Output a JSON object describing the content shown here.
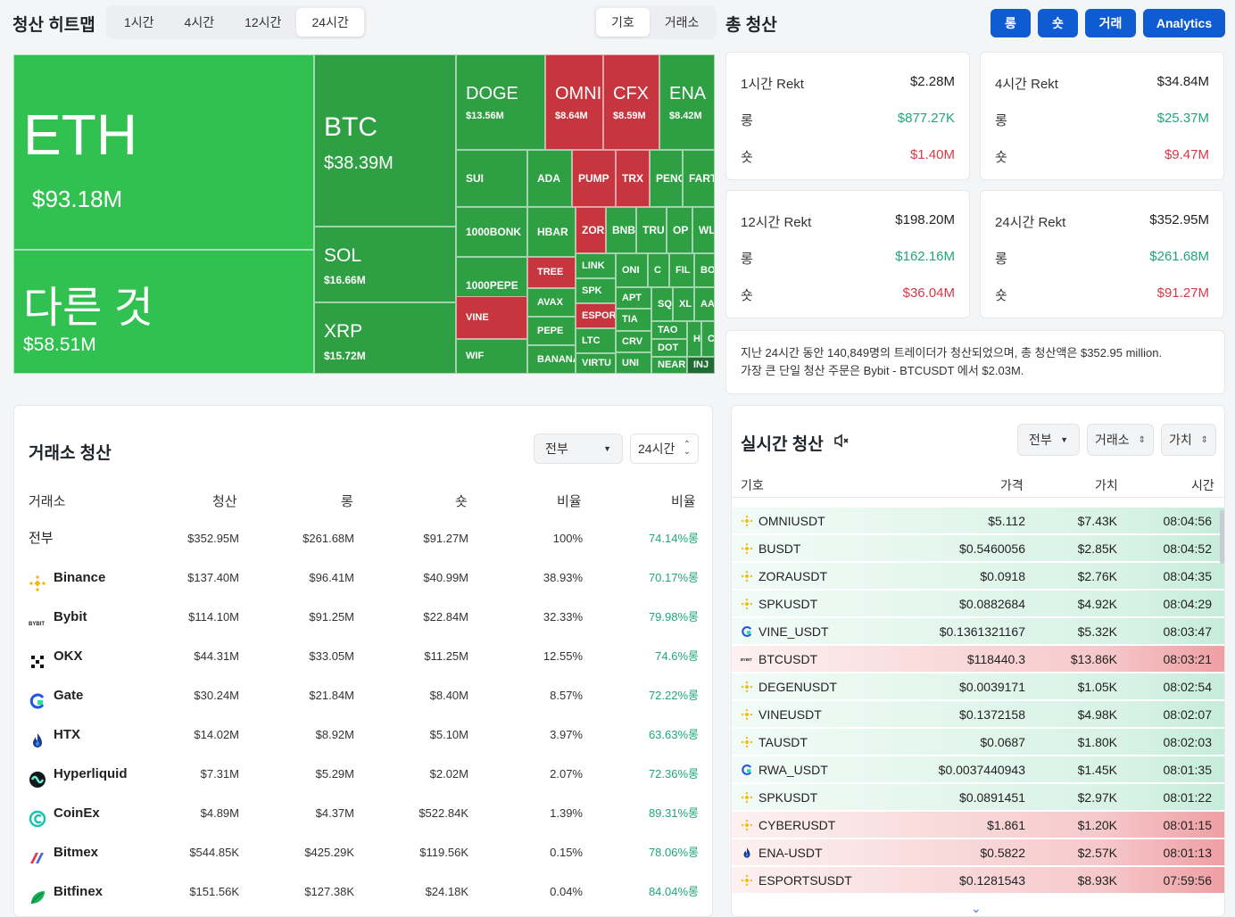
{
  "heatmap": {
    "title": "청산 히트맵",
    "timeframes": [
      "1시간",
      "4시간",
      "12시간",
      "24시간"
    ],
    "active_timeframe": "24시간",
    "group_tabs": [
      "기호",
      "거래소"
    ],
    "tiles": [
      {
        "id": "eth",
        "symbol": "ETH",
        "value": "$93.18M",
        "color": "g2"
      },
      {
        "id": "other",
        "symbol": "다른 것",
        "value": "$58.51M",
        "color": "g2"
      },
      {
        "id": "btc",
        "symbol": "BTC",
        "value": "$38.39M",
        "color": "g"
      },
      {
        "id": "sol",
        "symbol": "SOL",
        "value": "$16.66M",
        "color": "g"
      },
      {
        "id": "xrp",
        "symbol": "XRP",
        "value": "$15.72M",
        "color": "g"
      },
      {
        "id": "doge",
        "symbol": "DOGE",
        "value": "$13.56M",
        "color": "g"
      },
      {
        "id": "omni",
        "symbol": "OMNI",
        "value": "$8.64M",
        "color": "r"
      },
      {
        "id": "cfx",
        "symbol": "CFX",
        "value": "$8.59M",
        "color": "r"
      },
      {
        "id": "ena",
        "symbol": "ENA",
        "value": "$8.42M",
        "color": "g"
      },
      {
        "id": "sui",
        "symbol": "SUI",
        "color": "g"
      },
      {
        "id": "ada",
        "symbol": "ADA",
        "color": "g"
      },
      {
        "id": "pump",
        "symbol": "PUMP",
        "color": "r"
      },
      {
        "id": "trx",
        "symbol": "TRX",
        "color": "r"
      },
      {
        "id": "peng",
        "symbol": "PENG",
        "color": "g"
      },
      {
        "id": "fart",
        "symbol": "FART",
        "color": "g"
      },
      {
        "id": "bonk",
        "symbol": "1000BONK",
        "color": "g"
      },
      {
        "id": "hbar",
        "symbol": "HBAR",
        "color": "g"
      },
      {
        "id": "zora",
        "symbol": "ZORA",
        "color": "r"
      },
      {
        "id": "bnb",
        "symbol": "BNB",
        "color": "g"
      },
      {
        "id": "tru",
        "symbol": "TRU",
        "color": "g"
      },
      {
        "id": "op",
        "symbol": "OP",
        "color": "g"
      },
      {
        "id": "wl",
        "symbol": "WL",
        "color": "g"
      },
      {
        "id": "pepe1000",
        "symbol": "1000PEPE",
        "color": "g"
      },
      {
        "id": "tree",
        "symbol": "TREE",
        "color": "r"
      },
      {
        "id": "link",
        "symbol": "LINK",
        "color": "g"
      },
      {
        "id": "ond",
        "symbol": "ONI",
        "color": "g"
      },
      {
        "id": "c",
        "symbol": "C",
        "color": "g"
      },
      {
        "id": "fil",
        "symbol": "FIL",
        "color": "g"
      },
      {
        "id": "bo",
        "symbol": "BO",
        "color": "g"
      },
      {
        "id": "avax",
        "symbol": "AVAX",
        "color": "g"
      },
      {
        "id": "spk",
        "symbol": "SPK",
        "color": "g"
      },
      {
        "id": "apt",
        "symbol": "APT",
        "color": "g"
      },
      {
        "id": "sq",
        "symbol": "SQ",
        "color": "g"
      },
      {
        "id": "xl",
        "symbol": "XL",
        "color": "g"
      },
      {
        "id": "aa",
        "symbol": "AA",
        "color": "g"
      },
      {
        "id": "vine",
        "symbol": "VINE",
        "color": "r"
      },
      {
        "id": "espor",
        "symbol": "ESPOR",
        "color": "r"
      },
      {
        "id": "tia",
        "symbol": "TIA",
        "color": "g"
      },
      {
        "id": "pepe",
        "symbol": "PEPE",
        "color": "g"
      },
      {
        "id": "ltc",
        "symbol": "LTC",
        "color": "g"
      },
      {
        "id": "crv",
        "symbol": "CRV",
        "color": "g"
      },
      {
        "id": "tao",
        "symbol": "TAO",
        "color": "g"
      },
      {
        "id": "h",
        "symbol": "H",
        "color": "g"
      },
      {
        "id": "cc",
        "symbol": "C",
        "color": "g"
      },
      {
        "id": "dot",
        "symbol": "DOT",
        "color": "g"
      },
      {
        "id": "wif",
        "symbol": "WIF",
        "color": "g"
      },
      {
        "id": "banana",
        "symbol": "BANANA",
        "color": "g"
      },
      {
        "id": "virtual",
        "symbol": "VIRTU",
        "color": "g"
      },
      {
        "id": "uni",
        "symbol": "UNI",
        "color": "g"
      },
      {
        "id": "near",
        "symbol": "NEAR",
        "color": "g"
      },
      {
        "id": "inj",
        "symbol": "INJ",
        "color": "dg"
      }
    ]
  },
  "total": {
    "title": "총 청산",
    "buttons": [
      "롱",
      "숏",
      "거래",
      "Analytics"
    ],
    "cards": [
      {
        "title": "1시간 Rekt",
        "total": "$2.28M",
        "long_label": "롱",
        "long": "$877.27K",
        "short_label": "숏",
        "short": "$1.40M"
      },
      {
        "title": "4시간 Rekt",
        "total": "$34.84M",
        "long_label": "롱",
        "long": "$25.37M",
        "short_label": "숏",
        "short": "$9.47M"
      },
      {
        "title": "12시간 Rekt",
        "total": "$198.20M",
        "long_label": "롱",
        "long": "$162.16M",
        "short_label": "숏",
        "short": "$36.04M"
      },
      {
        "title": "24시간 Rekt",
        "total": "$352.95M",
        "long_label": "롱",
        "long": "$261.68M",
        "short_label": "숏",
        "short": "$91.27M"
      }
    ],
    "summary_line1": "지난 24시간 동안 140,849명의 트레이더가 청산되었으며, 총 청산액은 $352.95 million.",
    "summary_line2": "가장 큰 단일 청산 주문은 Bybit - BTCUSDT 에서 $2.03M."
  },
  "exchange": {
    "title": "거래소 청산",
    "filter_value": "전부",
    "period_value": "24시간",
    "headers": [
      "거래소",
      "청산",
      "롱",
      "숏",
      "비율",
      "비율"
    ],
    "rows": [
      {
        "name": "전부",
        "total": "$352.95M",
        "long": "$261.68M",
        "short": "$91.27M",
        "ratio": "100%",
        "long_ratio": "74.14%롱",
        "icon": "none"
      },
      {
        "name": "Binance",
        "total": "$137.40M",
        "long": "$96.41M",
        "short": "$40.99M",
        "ratio": "38.93%",
        "long_ratio": "70.17%롱",
        "icon": "binance-icon"
      },
      {
        "name": "Bybit",
        "total": "$114.10M",
        "long": "$91.25M",
        "short": "$22.84M",
        "ratio": "32.33%",
        "long_ratio": "79.98%롱",
        "icon": "bybit-icon"
      },
      {
        "name": "OKX",
        "total": "$44.31M",
        "long": "$33.05M",
        "short": "$11.25M",
        "ratio": "12.55%",
        "long_ratio": "74.6%롱",
        "icon": "okx-icon"
      },
      {
        "name": "Gate",
        "total": "$30.24M",
        "long": "$21.84M",
        "short": "$8.40M",
        "ratio": "8.57%",
        "long_ratio": "72.22%롱",
        "icon": "gate-icon"
      },
      {
        "name": "HTX",
        "total": "$14.02M",
        "long": "$8.92M",
        "short": "$5.10M",
        "ratio": "3.97%",
        "long_ratio": "63.63%롱",
        "icon": "htx-icon"
      },
      {
        "name": "Hyperliquid",
        "total": "$7.31M",
        "long": "$5.29M",
        "short": "$2.02M",
        "ratio": "2.07%",
        "long_ratio": "72.36%롱",
        "icon": "hyperliquid-icon"
      },
      {
        "name": "CoinEx",
        "total": "$4.89M",
        "long": "$4.37M",
        "short": "$522.84K",
        "ratio": "1.39%",
        "long_ratio": "89.31%롱",
        "icon": "coinex-icon"
      },
      {
        "name": "Bitmex",
        "total": "$544.85K",
        "long": "$425.29K",
        "short": "$119.56K",
        "ratio": "0.15%",
        "long_ratio": "78.06%롱",
        "icon": "bitmex-icon"
      },
      {
        "name": "Bitfinex",
        "total": "$151.56K",
        "long": "$127.38K",
        "short": "$24.18K",
        "ratio": "0.04%",
        "long_ratio": "84.04%롱",
        "icon": "bitfinex-icon"
      }
    ]
  },
  "realtime": {
    "title": "실시간 청산",
    "filter_value": "전부",
    "sort_exchange": "거래소",
    "sort_value": "가치",
    "headers": [
      "기호",
      "가격",
      "가치",
      "시간"
    ],
    "rows": [
      {
        "symbol": "OMNIUSDT",
        "price": "$5.112",
        "value": "$7.43K",
        "time": "08:04:56",
        "side": "long",
        "icon": "binance-icon"
      },
      {
        "symbol": "BUSDT",
        "price": "$0.5460056",
        "value": "$2.85K",
        "time": "08:04:52",
        "side": "long",
        "icon": "binance-icon"
      },
      {
        "symbol": "ZORAUSDT",
        "price": "$0.0918",
        "value": "$2.76K",
        "time": "08:04:35",
        "side": "long",
        "icon": "binance-icon"
      },
      {
        "symbol": "SPKUSDT",
        "price": "$0.0882684",
        "value": "$4.92K",
        "time": "08:04:29",
        "side": "long",
        "icon": "binance-icon"
      },
      {
        "symbol": "VINE_USDT",
        "price": "$0.1361321167",
        "value": "$5.32K",
        "time": "08:03:47",
        "side": "long",
        "icon": "gate-icon"
      },
      {
        "symbol": "BTCUSDT",
        "price": "$118440.3",
        "value": "$13.86K",
        "time": "08:03:21",
        "side": "short",
        "icon": "bybit-icon"
      },
      {
        "symbol": "DEGENUSDT",
        "price": "$0.0039171",
        "value": "$1.05K",
        "time": "08:02:54",
        "side": "long",
        "icon": "binance-icon"
      },
      {
        "symbol": "VINEUSDT",
        "price": "$0.1372158",
        "value": "$4.98K",
        "time": "08:02:07",
        "side": "long",
        "icon": "binance-icon"
      },
      {
        "symbol": "TAUSDT",
        "price": "$0.0687",
        "value": "$1.80K",
        "time": "08:02:03",
        "side": "long",
        "icon": "binance-icon"
      },
      {
        "symbol": "RWA_USDT",
        "price": "$0.0037440943",
        "value": "$1.45K",
        "time": "08:01:35",
        "side": "long",
        "icon": "gate-icon"
      },
      {
        "symbol": "SPKUSDT",
        "price": "$0.0891451",
        "value": "$2.97K",
        "time": "08:01:22",
        "side": "long",
        "icon": "binance-icon"
      },
      {
        "symbol": "CYBERUSDT",
        "price": "$1.861",
        "value": "$1.20K",
        "time": "08:01:15",
        "side": "short",
        "icon": "binance-icon"
      },
      {
        "symbol": "ENA-USDT",
        "price": "$0.5822",
        "value": "$2.57K",
        "time": "08:01:13",
        "side": "short",
        "icon": "htx-icon"
      },
      {
        "symbol": "ESPORTSUSDT",
        "price": "$0.1281543",
        "value": "$8.93K",
        "time": "07:59:56",
        "side": "short",
        "icon": "binance-icon"
      }
    ]
  },
  "colors": {
    "accent": "#0f5bd1",
    "green": "#1fa77b",
    "red": "#d6394a",
    "tile_green": "#2ea043",
    "tile_red": "#c7363f"
  }
}
